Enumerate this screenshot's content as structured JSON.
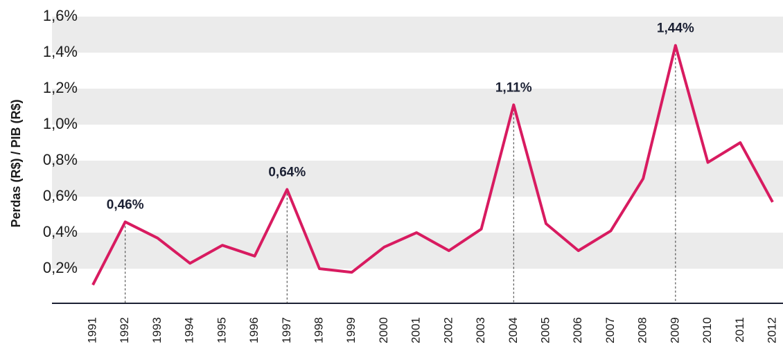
{
  "chart_data": {
    "type": "line",
    "y_label": "Perdas (R$) / PIB (R$)",
    "categories": [
      "1991",
      "1992",
      "1993",
      "1994",
      "1995",
      "1996",
      "1997",
      "1998",
      "1999",
      "2000",
      "2001",
      "2002",
      "2003",
      "2004",
      "2005",
      "2006",
      "2007",
      "2008",
      "2009",
      "2010",
      "2011",
      "2012"
    ],
    "values": [
      0.11,
      0.46,
      0.37,
      0.23,
      0.33,
      0.27,
      0.64,
      0.2,
      0.18,
      0.32,
      0.4,
      0.3,
      0.42,
      1.11,
      0.45,
      0.3,
      0.41,
      0.7,
      1.44,
      0.79,
      0.9,
      0.57
    ],
    "value_labels": [
      null,
      "0,46%",
      null,
      null,
      null,
      null,
      "0,64%",
      null,
      null,
      null,
      null,
      null,
      null,
      "1,11%",
      null,
      null,
      null,
      null,
      "1,44%",
      null,
      null,
      null
    ],
    "color": "#d81b60",
    "ylim": [
      0,
      1.6
    ],
    "yticks": [
      {
        "value": 0.2,
        "label": "0,2%"
      },
      {
        "value": 0.4,
        "label": "0,4%"
      },
      {
        "value": 0.6,
        "label": "0,6%"
      },
      {
        "value": 0.8,
        "label": "0,8%"
      },
      {
        "value": 1.0,
        "label": "1,0%"
      },
      {
        "value": 1.2,
        "label": "1,2%"
      },
      {
        "value": 1.4,
        "label": "1,4%"
      },
      {
        "value": 1.6,
        "label": "1,6%"
      }
    ],
    "grid": "bands"
  }
}
